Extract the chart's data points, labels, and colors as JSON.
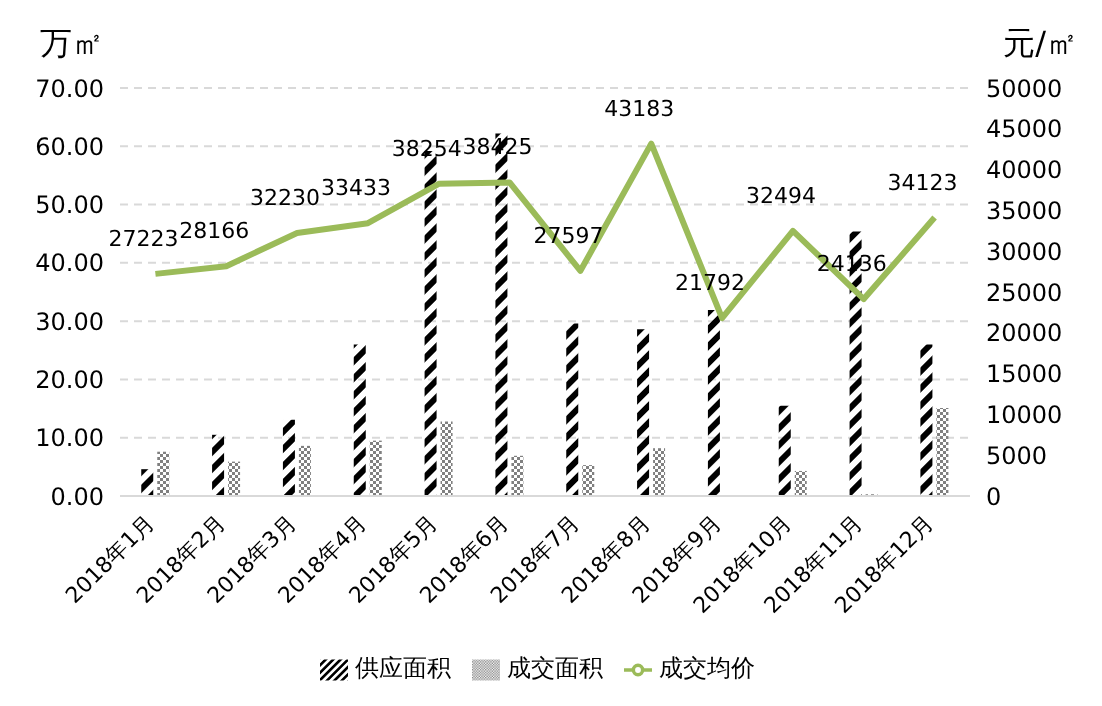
{
  "chart_data": {
    "type": "bar",
    "ylabel": "万㎡",
    "y2label": "元/㎡",
    "categories": [
      "2018年1月",
      "2018年2月",
      "2018年3月",
      "2018年4月",
      "2018年5月",
      "2018年6月",
      "2018年7月",
      "2018年8月",
      "2018年9月",
      "2018年10月",
      "2018年11月",
      "2018年12月"
    ],
    "series": [
      {
        "name": "供应面积",
        "color": "#000000",
        "values": [
          4.6,
          10.5,
          13.1,
          26.0,
          59.2,
          62.2,
          29.6,
          28.6,
          31.9,
          15.5,
          45.4,
          26.0
        ]
      },
      {
        "name": "成交面积",
        "color": "#808080",
        "values": [
          7.6,
          5.9,
          8.6,
          9.5,
          12.8,
          6.9,
          5.3,
          8.2,
          0,
          4.3,
          0.3,
          15.1
        ]
      },
      {
        "name": "成交均价",
        "type": "line",
        "axis": "y2",
        "color": "#9bbb59",
        "marker": "none",
        "values": [
          27223,
          28166,
          32230,
          33433,
          38254,
          38425,
          27597,
          43183,
          21792,
          32494,
          24136,
          34123
        ],
        "value_labels": [
          "27223",
          "28166",
          "32230",
          "33433",
          "38254",
          "38425",
          "27597",
          "43183",
          "21792",
          "32494",
          "24136",
          "34123"
        ]
      }
    ],
    "ylim": [
      0,
      70
    ],
    "yticks": [
      {
        "value": 0,
        "label": "0.00"
      },
      {
        "value": 10,
        "label": "10.00"
      },
      {
        "value": 20,
        "label": "20.00"
      },
      {
        "value": 30,
        "label": "30.00"
      },
      {
        "value": 40,
        "label": "40.00"
      },
      {
        "value": 50,
        "label": "50.00"
      },
      {
        "value": 60,
        "label": "60.00"
      },
      {
        "value": 70,
        "label": "70.00"
      }
    ],
    "y2lim": [
      0,
      50000
    ],
    "y2ticks": [
      0,
      5000,
      10000,
      15000,
      20000,
      25000,
      30000,
      35000,
      40000,
      45000,
      50000
    ],
    "grid": "y",
    "legend": "bottom"
  }
}
